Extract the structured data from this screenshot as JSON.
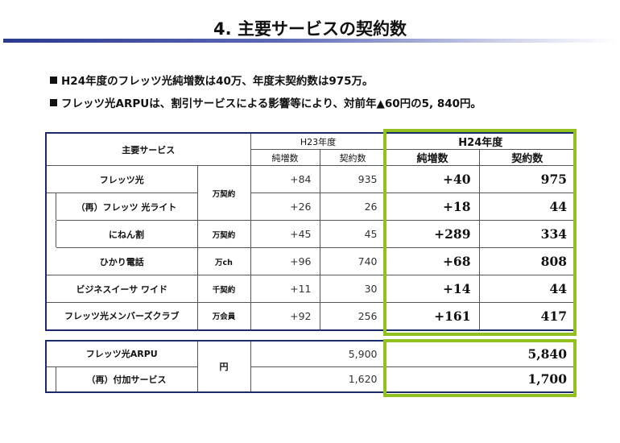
{
  "title": "4. 主要サービスの契約数",
  "bullets": [
    "H24年度のフレッツ光純増数は40万、年度末契約数は975万。",
    "フレッツ光ARPUは、割引サービスによる影響等により、対前年▲60円の5, 840円。"
  ],
  "table": {
    "header_service": "主要サービス",
    "header_h23": "H23年度",
    "header_h24": "H24年度",
    "col_net": "純増数",
    "col_contracts": "契約数",
    "rows": [
      {
        "name": "フレッツ光",
        "unit": "万契約",
        "h23_net": "+84",
        "h23_total": "935",
        "h24_net": "+40",
        "h24_total": "975"
      },
      {
        "name": "（再）フレッツ 光ライト",
        "unit": "",
        "h23_net": "+26",
        "h23_total": "26",
        "h24_net": "+18",
        "h24_total": "44"
      },
      {
        "name": "にねん割",
        "unit": "万契約",
        "h23_net": "+45",
        "h23_total": "45",
        "h24_net": "+289",
        "h24_total": "334"
      },
      {
        "name": "ひかり電話",
        "unit": "万ch",
        "h23_net": "+96",
        "h23_total": "740",
        "h24_net": "+68",
        "h24_total": "808"
      },
      {
        "name": "ビジネスイーサ ワイド",
        "unit": "千契約",
        "h23_net": "+11",
        "h23_total": "30",
        "h24_net": "+14",
        "h24_total": "44"
      },
      {
        "name": "フレッツ光メンバーズクラブ",
        "unit": "万会員",
        "h23_net": "+92",
        "h23_total": "256",
        "h24_net": "+161",
        "h24_total": "417"
      }
    ]
  },
  "arpu": {
    "unit": "円",
    "rows": [
      {
        "name": "フレッツ光ARPU",
        "h23": "5,900",
        "h24": "5,840"
      },
      {
        "name": "（再）付加サービス",
        "h23": "1,620",
        "h24": "1,700"
      }
    ]
  },
  "colors": {
    "highlight": "#92c01f",
    "border": "#1a2a6a",
    "title_bar": "#2a3a8c"
  }
}
